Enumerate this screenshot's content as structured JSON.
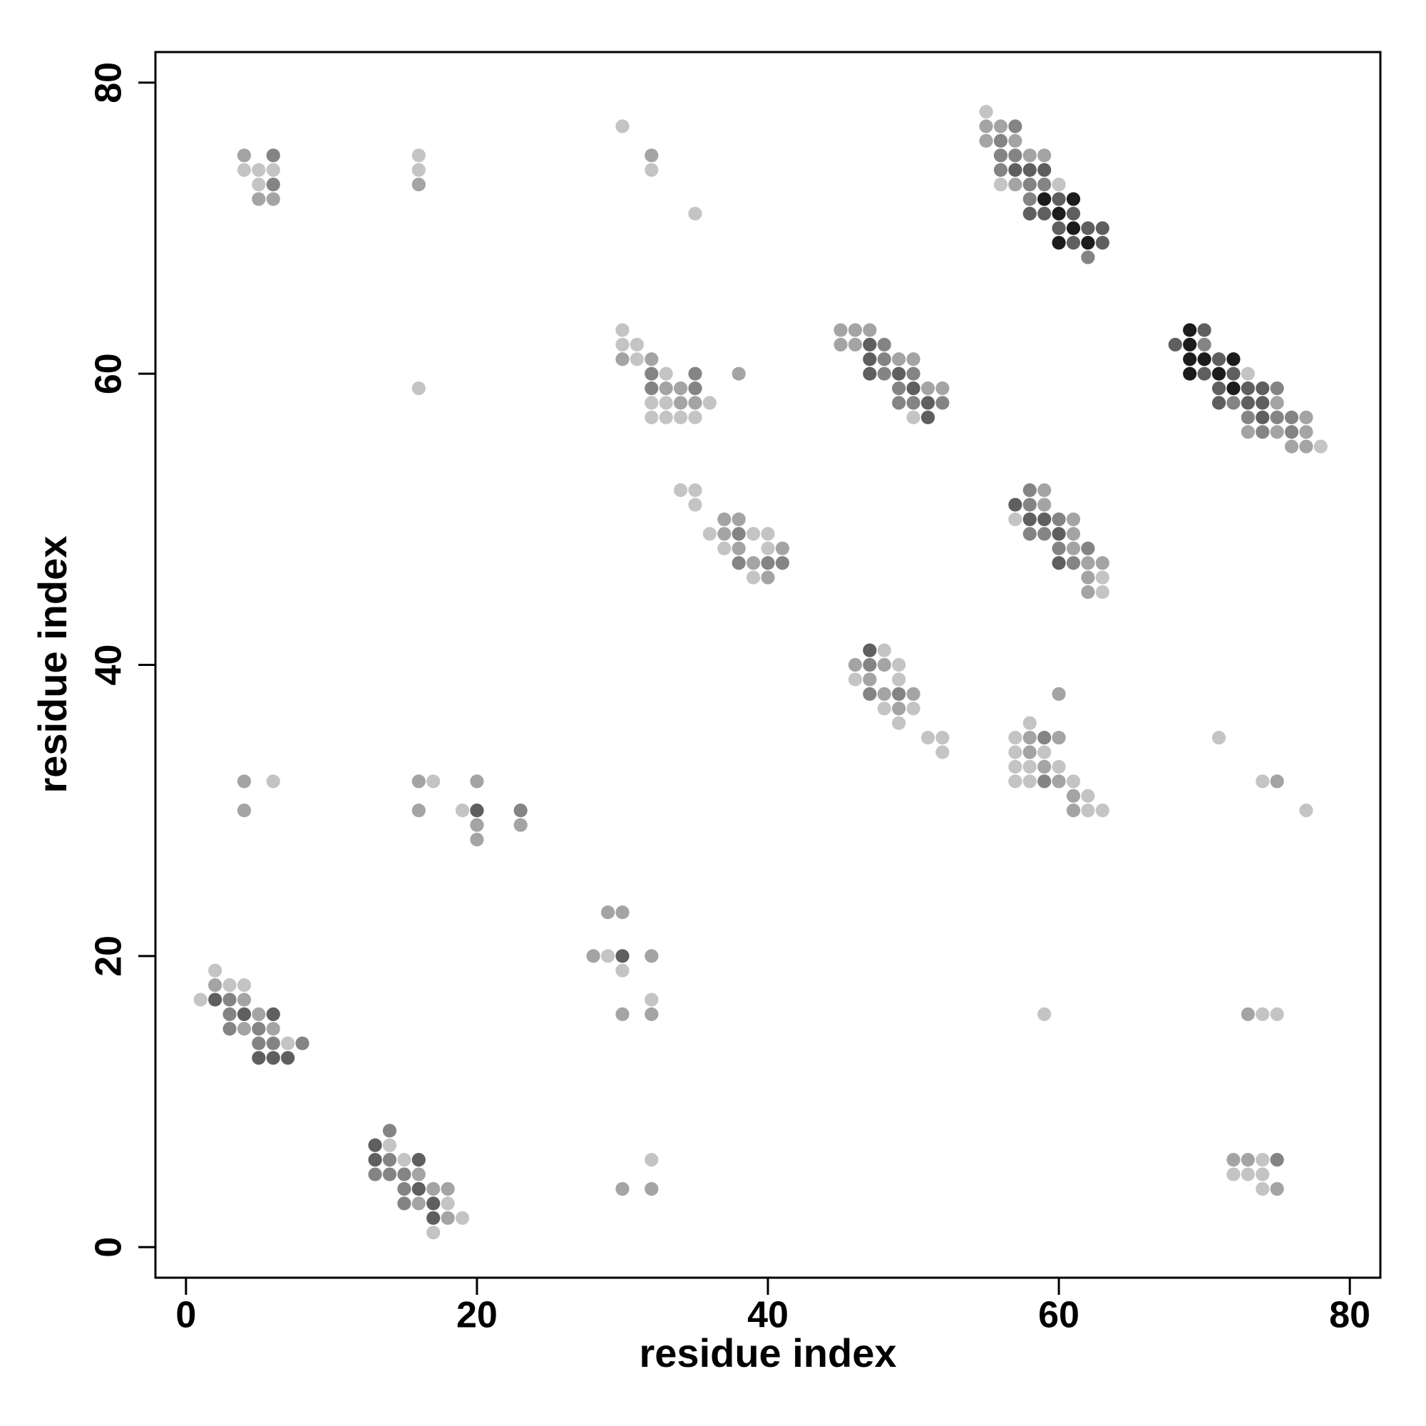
{
  "chart_data": {
    "type": "scatter",
    "xlabel": "residue index",
    "ylabel": "residue index",
    "xlim": [
      -2.1,
      82.1
    ],
    "ylim": [
      -2.1,
      82.1
    ],
    "xticks": [
      0,
      20,
      40,
      60,
      80
    ],
    "yticks": [
      0,
      20,
      40,
      60,
      80
    ],
    "series": [
      {
        "color": "#c4c4c4",
        "x": [
          4,
          5,
          6,
          5,
          16,
          16,
          30,
          32,
          35,
          55,
          56,
          60,
          30,
          30,
          31,
          31,
          33,
          32,
          33,
          36,
          32,
          33,
          34,
          35,
          16,
          50,
          73,
          78,
          34,
          35,
          35,
          36,
          39,
          40,
          37,
          40,
          39,
          57,
          63,
          63,
          48,
          49,
          46,
          49,
          48,
          50,
          49,
          51,
          52,
          52,
          58,
          57,
          57,
          59,
          57,
          58,
          60,
          57,
          58,
          61,
          62,
          62,
          63,
          71,
          74,
          77,
          6,
          17,
          19,
          29,
          30,
          32,
          59,
          74,
          75,
          2,
          3,
          4,
          1,
          7,
          14,
          15,
          18,
          19,
          17,
          32,
          74,
          72,
          73,
          74,
          74
        ],
        "y": [
          74,
          74,
          74,
          73,
          75,
          74,
          77,
          74,
          71,
          78,
          73,
          73,
          63,
          62,
          62,
          61,
          60,
          58,
          58,
          58,
          57,
          57,
          57,
          57,
          59,
          57,
          60,
          55,
          52,
          52,
          51,
          49,
          49,
          49,
          48,
          48,
          46,
          50,
          46,
          45,
          41,
          40,
          39,
          39,
          37,
          37,
          36,
          35,
          35,
          34,
          36,
          35,
          34,
          34,
          33,
          33,
          33,
          32,
          32,
          32,
          31,
          30,
          30,
          35,
          32,
          30,
          32,
          32,
          30,
          20,
          19,
          17,
          16,
          16,
          16,
          19,
          18,
          18,
          17,
          14,
          7,
          6,
          3,
          2,
          1,
          6,
          6,
          5,
          5,
          5,
          4
        ]
      },
      {
        "color": "#a4a4a4",
        "x": [
          4,
          5,
          6,
          16,
          32,
          55,
          56,
          55,
          57,
          58,
          59,
          57,
          30,
          32,
          38,
          33,
          34,
          34,
          35,
          45,
          46,
          47,
          45,
          46,
          49,
          50,
          51,
          52,
          75,
          77,
          73,
          75,
          77,
          76,
          77,
          37,
          38,
          37,
          38,
          41,
          39,
          40,
          59,
          59,
          61,
          61,
          61,
          62,
          63,
          62,
          62,
          46,
          48,
          47,
          48,
          50,
          49,
          60,
          58,
          60,
          58,
          59,
          60,
          61,
          61,
          75,
          4,
          4,
          16,
          16,
          20,
          20,
          20,
          23,
          29,
          30,
          28,
          32,
          30,
          32,
          73,
          2,
          4,
          5,
          4,
          6,
          16,
          17,
          18,
          16,
          18,
          30,
          32,
          72,
          73,
          75
        ],
        "y": [
          75,
          72,
          72,
          73,
          75,
          77,
          77,
          76,
          76,
          75,
          75,
          73,
          61,
          61,
          60,
          59,
          59,
          58,
          58,
          63,
          63,
          63,
          62,
          62,
          61,
          61,
          59,
          59,
          58,
          57,
          56,
          56,
          56,
          55,
          55,
          50,
          50,
          49,
          48,
          48,
          47,
          46,
          52,
          51,
          50,
          49,
          48,
          47,
          47,
          46,
          45,
          40,
          40,
          39,
          38,
          38,
          37,
          38,
          35,
          35,
          34,
          33,
          32,
          31,
          30,
          32,
          32,
          30,
          32,
          30,
          32,
          29,
          28,
          29,
          23,
          23,
          20,
          20,
          16,
          16,
          16,
          18,
          17,
          16,
          15,
          15,
          5,
          4,
          4,
          3,
          2,
          4,
          4,
          6,
          6,
          4
        ]
      },
      {
        "color": "#848484",
        "x": [
          6,
          6,
          57,
          56,
          56,
          57,
          56,
          58,
          59,
          58,
          62,
          32,
          35,
          32,
          35,
          48,
          48,
          48,
          50,
          49,
          49,
          50,
          52,
          70,
          75,
          72,
          73,
          75,
          76,
          74,
          76,
          38,
          38,
          40,
          41,
          58,
          58,
          60,
          58,
          59,
          60,
          62,
          61,
          47,
          47,
          49,
          59,
          59,
          23,
          3,
          3,
          3,
          5,
          5,
          6,
          8,
          14,
          14,
          13,
          14,
          15,
          15,
          15,
          75
        ],
        "y": [
          75,
          73,
          77,
          76,
          75,
          75,
          74,
          73,
          73,
          72,
          68,
          60,
          60,
          59,
          59,
          62,
          61,
          60,
          60,
          59,
          58,
          58,
          58,
          62,
          59,
          58,
          57,
          57,
          57,
          56,
          56,
          49,
          47,
          47,
          47,
          52,
          51,
          50,
          49,
          49,
          48,
          48,
          47,
          40,
          38,
          38,
          35,
          32,
          30,
          17,
          16,
          15,
          15,
          14,
          14,
          14,
          8,
          6,
          5,
          5,
          5,
          4,
          3,
          6
        ]
      },
      {
        "color": "#5f5f5f",
        "x": [
          57,
          58,
          59,
          60,
          58,
          59,
          61,
          60,
          62,
          63,
          61,
          63,
          47,
          47,
          47,
          49,
          50,
          51,
          51,
          70,
          68,
          71,
          70,
          72,
          71,
          73,
          74,
          71,
          73,
          74,
          74,
          57,
          58,
          59,
          60,
          60,
          47,
          20,
          30,
          2,
          4,
          6,
          5,
          6,
          7,
          13,
          13,
          16,
          16,
          17,
          17
        ],
        "y": [
          74,
          74,
          74,
          72,
          71,
          71,
          71,
          70,
          70,
          70,
          69,
          69,
          62,
          61,
          60,
          60,
          59,
          58,
          57,
          63,
          62,
          61,
          60,
          60,
          59,
          59,
          59,
          58,
          58,
          58,
          57,
          51,
          50,
          50,
          49,
          47,
          41,
          30,
          20,
          17,
          16,
          16,
          13,
          13,
          13,
          7,
          6,
          6,
          4,
          3,
          2
        ]
      },
      {
        "color": "#1c1c1c",
        "x": [
          59,
          61,
          60,
          61,
          60,
          62,
          69,
          69,
          69,
          70,
          72,
          69,
          71,
          72
        ],
        "y": [
          72,
          72,
          71,
          70,
          69,
          69,
          63,
          62,
          61,
          61,
          61,
          60,
          60,
          59
        ]
      }
    ]
  }
}
